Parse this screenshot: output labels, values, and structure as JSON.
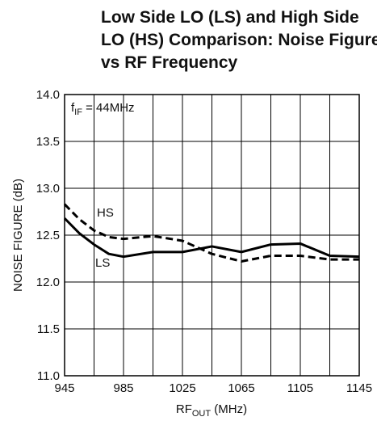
{
  "chart_data": {
    "type": "line",
    "title": [
      "Low Side LO (LS) and High Side",
      "LO (HS) Comparison: Noise Figure",
      "vs RF Frequency"
    ],
    "x_label": {
      "text": "RF",
      "sub": "OUT",
      "rest": " (MHz)"
    },
    "y_label": "NOISE FIGURE (dB)",
    "annotation": {
      "text": "f",
      "sub": "IF",
      "rest": " = 44MHz"
    },
    "x": [
      945,
      955,
      965,
      975,
      985,
      1005,
      1025,
      1045,
      1065,
      1085,
      1105,
      1125,
      1145
    ],
    "series": [
      {
        "name": "HS",
        "color": "#000000",
        "style": "dashed",
        "values": [
          12.83,
          12.67,
          12.55,
          12.48,
          12.46,
          12.49,
          12.44,
          12.3,
          12.22,
          12.28,
          12.28,
          12.24,
          12.24
        ]
      },
      {
        "name": "LS",
        "color": "#000000",
        "style": "solid",
        "values": [
          12.68,
          12.52,
          12.4,
          12.3,
          12.27,
          12.32,
          12.32,
          12.38,
          12.32,
          12.4,
          12.41,
          12.28,
          12.27
        ]
      }
    ],
    "xlim": [
      945,
      1145
    ],
    "xticks": [
      945,
      985,
      1025,
      1065,
      1105,
      1145
    ],
    "x_minor_ticks": [
      965,
      1005,
      1045,
      1085,
      1125
    ],
    "ylim": [
      11.0,
      14.0
    ],
    "yticks": [
      {
        "value": 11.0,
        "label": "11.0"
      },
      {
        "value": 11.5,
        "label": "11.5"
      },
      {
        "value": 12.0,
        "label": "12.0"
      },
      {
        "value": 12.5,
        "label": "12.5"
      },
      {
        "value": 13.0,
        "label": "13.0"
      },
      {
        "value": 13.5,
        "label": "13.5"
      },
      {
        "value": 14.0,
        "label": "14.0"
      }
    ],
    "grid": true
  }
}
